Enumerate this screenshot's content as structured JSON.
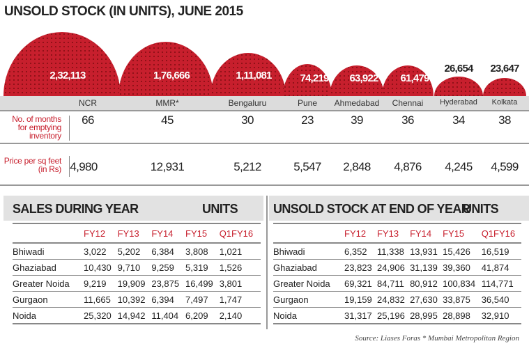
{
  "title": "UNSOLD STOCK (IN UNITS), JUNE 2015",
  "chart_data": {
    "type": "bubble",
    "title": "UNSOLD STOCK (IN UNITS), JUNE 2015",
    "categories": [
      "NCR",
      "MMR*",
      "Bengaluru",
      "Pune",
      "Ahmedabad",
      "Chennai",
      "Hyderabad",
      "Kolkata"
    ],
    "values": [
      232113,
      176666,
      111081,
      74219,
      63922,
      61479,
      26654,
      23647
    ],
    "value_labels": [
      "2,32,113",
      "1,76,666",
      "1,11,081",
      "74,219",
      "63,922",
      "61,479",
      "26,654",
      "23,647"
    ],
    "color": "#c71f2d"
  },
  "rows": {
    "months_label": "No. of months for emptying inventory",
    "months": [
      "66",
      "45",
      "30",
      "23",
      "39",
      "36",
      "34",
      "38"
    ],
    "price_label": "Price per sq feet (in Rs)",
    "price": [
      "4,980",
      "12,931",
      "5,212",
      "5,547",
      "2,848",
      "4,876",
      "4,245",
      "4,599"
    ]
  },
  "sales": {
    "title": "SALES DURING YEAR",
    "units": "UNITS",
    "columns": [
      "FY12",
      "FY13",
      "FY14",
      "FY15",
      "Q1FY16"
    ],
    "rows": [
      {
        "name": "Bhiwadi",
        "values": [
          "3,022",
          "5,202",
          "6,384",
          "3,808",
          "1,021"
        ]
      },
      {
        "name": "Ghaziabad",
        "values": [
          "10,430",
          "9,710",
          "9,259",
          "5,319",
          "1,526"
        ]
      },
      {
        "name": "Greater Noida",
        "values": [
          "9,219",
          "19,909",
          "23,875",
          "16,499",
          "3,801"
        ]
      },
      {
        "name": "Gurgaon",
        "values": [
          "11,665",
          "10,392",
          "6,394",
          "7,497",
          "1,747"
        ]
      },
      {
        "name": "Noida",
        "values": [
          "25,320",
          "14,942",
          "11,404",
          "6,209",
          "2,140"
        ]
      }
    ]
  },
  "unsold": {
    "title": "UNSOLD STOCK AT END OF YEAR",
    "units": "UNITS",
    "columns": [
      "FY12",
      "FY13",
      "FY14",
      "FY15",
      "Q1FY16"
    ],
    "rows": [
      {
        "name": "Bhiwadi",
        "values": [
          "6,352",
          "11,338",
          "13,931",
          "15,426",
          "16,519"
        ]
      },
      {
        "name": "Ghaziabad",
        "values": [
          "23,823",
          "24,906",
          "31,139",
          "39,360",
          "41,874"
        ]
      },
      {
        "name": "Greater Noida",
        "values": [
          "69,321",
          "84,711",
          "80,912",
          "100,834",
          "114,771"
        ]
      },
      {
        "name": "Gurgaon",
        "values": [
          "19,159",
          "24,832",
          "27,630",
          "33,875",
          "36,540"
        ]
      },
      {
        "name": "Noida",
        "values": [
          "31,317",
          "25,196",
          "28,995",
          "28,898",
          "32,910"
        ]
      }
    ]
  },
  "source": "Source: Liases Foras * Mumbai Metropolitan Region"
}
